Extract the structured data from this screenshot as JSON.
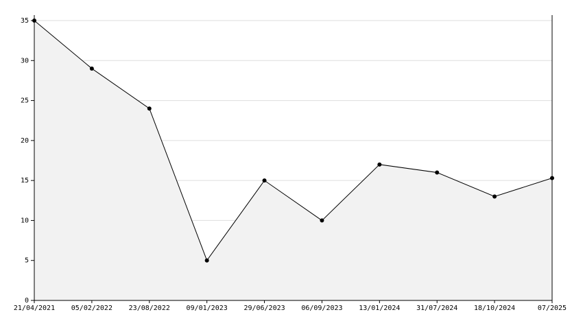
{
  "chart_data": {
    "type": "area",
    "categories": [
      "21/04/2021",
      "05/02/2022",
      "23/08/2022",
      "09/01/2023",
      "29/06/2023",
      "06/09/2023",
      "13/01/2024",
      "31/07/2024",
      "18/10/2024",
      "07/2025"
    ],
    "values": [
      35,
      29,
      24,
      5,
      15,
      10,
      17,
      16,
      13,
      15.3
    ],
    "color": "#000000",
    "fill_color": "#f2f2f2",
    "ylim": [
      0,
      35
    ],
    "yticks": [
      0,
      5,
      10,
      15,
      20,
      25,
      30,
      35
    ],
    "grid": true
  }
}
